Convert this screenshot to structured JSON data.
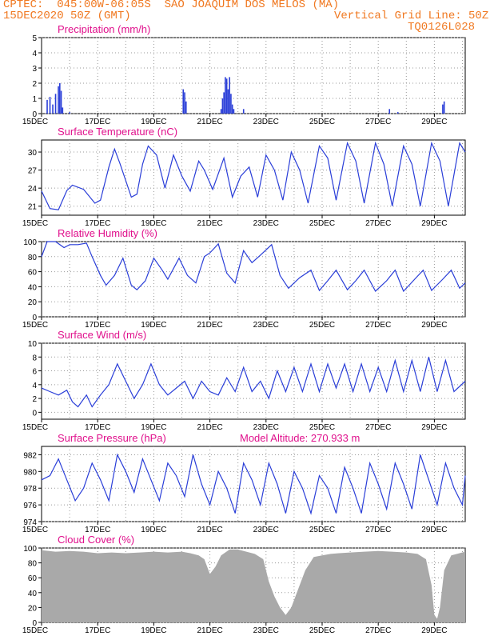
{
  "header": {
    "line1": "CPTEC:  045:00W-06:05S  SAO JOAQUIM DOS MELOS (MA)",
    "line2_left": "15DEC2020 50Z (GMT)",
    "line2_right": "Vertical Grid Line: 50Z",
    "line3_right": "TQ0126L028"
  },
  "colors": {
    "line": "#2a3ed8",
    "title": "#e0108c",
    "header": "#f07820",
    "cloud": "#a9a9a9"
  },
  "chart_data": [
    {
      "type": "bar",
      "title": "Precipitation (mm/h)",
      "ylim": [
        0,
        5
      ],
      "yticks": [
        0,
        1,
        2,
        3,
        4,
        5
      ],
      "xticks": [
        "15DEC",
        "17DEC",
        "19DEC",
        "21DEC",
        "23DEC",
        "25DEC",
        "27DEC",
        "29DEC"
      ],
      "x_unit": "days since 15DEC",
      "points": [
        [
          0.2,
          0.9
        ],
        [
          0.3,
          1.1
        ],
        [
          0.4,
          0.6
        ],
        [
          0.5,
          1.3
        ],
        [
          0.6,
          1.8
        ],
        [
          0.65,
          2.0
        ],
        [
          0.7,
          1.5
        ],
        [
          0.75,
          0.4
        ],
        [
          1.0,
          0.1
        ],
        [
          5.05,
          1.6
        ],
        [
          5.1,
          1.4
        ],
        [
          5.15,
          0.8
        ],
        [
          6.4,
          0.3
        ],
        [
          6.45,
          1.0
        ],
        [
          6.5,
          1.4
        ],
        [
          6.55,
          2.4
        ],
        [
          6.6,
          2.3
        ],
        [
          6.65,
          1.6
        ],
        [
          6.7,
          2.4
        ],
        [
          6.75,
          1.3
        ],
        [
          6.8,
          0.6
        ],
        [
          6.85,
          0.3
        ],
        [
          7.2,
          0.3
        ],
        [
          12.4,
          0.3
        ],
        [
          12.7,
          0.1
        ],
        [
          14.3,
          0.6
        ],
        [
          14.35,
          0.8
        ]
      ]
    },
    {
      "type": "line",
      "title": "Surface Temperature (nC)",
      "ylim": [
        19.5,
        32
      ],
      "yticks": [
        21,
        24,
        27,
        30
      ],
      "xticks": [
        "15DEC",
        "17DEC",
        "19DEC",
        "21DEC",
        "23DEC",
        "25DEC",
        "27DEC",
        "29DEC"
      ],
      "x_unit": "days since 15DEC",
      "points": [
        [
          0,
          23.5
        ],
        [
          0.3,
          20.6
        ],
        [
          0.6,
          20.4
        ],
        [
          0.9,
          23.6
        ],
        [
          1.1,
          24.5
        ],
        [
          1.5,
          23.8
        ],
        [
          1.9,
          21.5
        ],
        [
          2.1,
          22.0
        ],
        [
          2.4,
          27.5
        ],
        [
          2.6,
          30.5
        ],
        [
          2.8,
          28.0
        ],
        [
          3.2,
          22.5
        ],
        [
          3.4,
          23.0
        ],
        [
          3.6,
          28.0
        ],
        [
          3.8,
          31.0
        ],
        [
          4.1,
          29.5
        ],
        [
          4.4,
          24.0
        ],
        [
          4.7,
          29.5
        ],
        [
          5.0,
          26.0
        ],
        [
          5.3,
          23.5
        ],
        [
          5.6,
          28.5
        ],
        [
          5.8,
          27.0
        ],
        [
          6.1,
          23.8
        ],
        [
          6.5,
          29.0
        ],
        [
          6.8,
          22.5
        ],
        [
          7.1,
          26.0
        ],
        [
          7.4,
          27.5
        ],
        [
          7.7,
          22.5
        ],
        [
          8.0,
          29.5
        ],
        [
          8.3,
          27.0
        ],
        [
          8.6,
          22.0
        ],
        [
          8.9,
          30.0
        ],
        [
          9.2,
          27.0
        ],
        [
          9.5,
          21.5
        ],
        [
          9.9,
          31.0
        ],
        [
          10.2,
          29.0
        ],
        [
          10.5,
          22.0
        ],
        [
          10.9,
          31.5
        ],
        [
          11.2,
          28.5
        ],
        [
          11.5,
          21.5
        ],
        [
          11.9,
          31.5
        ],
        [
          12.2,
          28.0
        ],
        [
          12.5,
          21.0
        ],
        [
          12.9,
          31.0
        ],
        [
          13.2,
          28.0
        ],
        [
          13.5,
          21.0
        ],
        [
          13.9,
          31.5
        ],
        [
          14.2,
          28.5
        ],
        [
          14.5,
          21.0
        ],
        [
          14.9,
          31.5
        ],
        [
          15.1,
          30.0
        ]
      ]
    },
    {
      "type": "line",
      "title": "Relative Humidity (%)",
      "ylim": [
        0,
        100
      ],
      "yticks": [
        0,
        20,
        40,
        60,
        80,
        100
      ],
      "xticks": [
        "15DEC",
        "17DEC",
        "19DEC",
        "21DEC",
        "23DEC",
        "25DEC",
        "27DEC",
        "29DEC"
      ],
      "x_unit": "days since 15DEC",
      "points": [
        [
          0,
          80
        ],
        [
          0.2,
          100
        ],
        [
          0.5,
          100
        ],
        [
          0.8,
          92
        ],
        [
          1.0,
          96
        ],
        [
          1.3,
          96
        ],
        [
          1.6,
          98
        ],
        [
          1.8,
          80
        ],
        [
          2.1,
          55
        ],
        [
          2.3,
          42
        ],
        [
          2.6,
          55
        ],
        [
          2.9,
          78
        ],
        [
          3.2,
          42
        ],
        [
          3.4,
          36
        ],
        [
          3.7,
          48
        ],
        [
          4.0,
          78
        ],
        [
          4.3,
          62
        ],
        [
          4.5,
          50
        ],
        [
          4.9,
          78
        ],
        [
          5.2,
          55
        ],
        [
          5.5,
          45
        ],
        [
          5.8,
          80
        ],
        [
          6.0,
          85
        ],
        [
          6.3,
          97
        ],
        [
          6.6,
          58
        ],
        [
          6.9,
          45
        ],
        [
          7.2,
          88
        ],
        [
          7.5,
          72
        ],
        [
          7.8,
          82
        ],
        [
          8.2,
          96
        ],
        [
          8.5,
          55
        ],
        [
          8.8,
          38
        ],
        [
          9.2,
          52
        ],
        [
          9.6,
          62
        ],
        [
          9.9,
          35
        ],
        [
          10.2,
          48
        ],
        [
          10.5,
          62
        ],
        [
          10.9,
          36
        ],
        [
          11.2,
          48
        ],
        [
          11.5,
          62
        ],
        [
          11.9,
          34
        ],
        [
          12.3,
          48
        ],
        [
          12.6,
          62
        ],
        [
          12.9,
          34
        ],
        [
          13.3,
          50
        ],
        [
          13.6,
          62
        ],
        [
          13.9,
          35
        ],
        [
          14.3,
          50
        ],
        [
          14.6,
          62
        ],
        [
          14.9,
          38
        ],
        [
          15.1,
          45
        ]
      ]
    },
    {
      "type": "line",
      "title": "Surface Wind (m/s)",
      "ylim": [
        -1,
        10
      ],
      "yticks": [
        0,
        2,
        4,
        6,
        8,
        10
      ],
      "xticks": [
        "15DEC",
        "17DEC",
        "19DEC",
        "21DEC",
        "23DEC",
        "25DEC",
        "27DEC",
        "29DEC"
      ],
      "x_unit": "days since 15DEC",
      "points": [
        [
          0,
          3.5
        ],
        [
          0.3,
          3.0
        ],
        [
          0.6,
          2.5
        ],
        [
          0.9,
          3.2
        ],
        [
          1.1,
          1.5
        ],
        [
          1.3,
          0.8
        ],
        [
          1.6,
          2.5
        ],
        [
          1.8,
          0.8
        ],
        [
          2.1,
          2.5
        ],
        [
          2.4,
          4.0
        ],
        [
          2.7,
          7.0
        ],
        [
          3.0,
          4.5
        ],
        [
          3.3,
          2.0
        ],
        [
          3.6,
          4.0
        ],
        [
          3.9,
          7.0
        ],
        [
          4.2,
          4.0
        ],
        [
          4.5,
          2.5
        ],
        [
          4.8,
          3.5
        ],
        [
          5.1,
          4.5
        ],
        [
          5.4,
          2.0
        ],
        [
          5.7,
          4.5
        ],
        [
          6.0,
          3.0
        ],
        [
          6.3,
          2.5
        ],
        [
          6.6,
          5.0
        ],
        [
          6.9,
          3.0
        ],
        [
          7.2,
          6.5
        ],
        [
          7.5,
          3.0
        ],
        [
          7.8,
          4.5
        ],
        [
          8.1,
          2.0
        ],
        [
          8.4,
          6.0
        ],
        [
          8.7,
          3.0
        ],
        [
          9.0,
          6.5
        ],
        [
          9.3,
          3.0
        ],
        [
          9.6,
          7.0
        ],
        [
          9.9,
          3.0
        ],
        [
          10.2,
          7.0
        ],
        [
          10.5,
          3.5
        ],
        [
          10.8,
          7.0
        ],
        [
          11.1,
          3.0
        ],
        [
          11.4,
          7.0
        ],
        [
          11.7,
          3.0
        ],
        [
          12.0,
          6.5
        ],
        [
          12.3,
          3.0
        ],
        [
          12.6,
          7.5
        ],
        [
          12.9,
          3.0
        ],
        [
          13.2,
          7.5
        ],
        [
          13.5,
          3.0
        ],
        [
          13.8,
          8.0
        ],
        [
          14.1,
          3.0
        ],
        [
          14.4,
          7.5
        ],
        [
          14.7,
          3.0
        ],
        [
          15.1,
          4.5
        ]
      ]
    },
    {
      "type": "line",
      "title": "Surface Pressure (hPa)",
      "annotation": "Model Altitude: 270.933 m",
      "ylim": [
        974,
        983
      ],
      "yticks": [
        974,
        976,
        978,
        980,
        982
      ],
      "xticks": [
        "15DEC",
        "17DEC",
        "19DEC",
        "21DEC",
        "23DEC",
        "25DEC",
        "27DEC",
        "29DEC"
      ],
      "x_unit": "days since 15DEC",
      "points": [
        [
          0,
          979
        ],
        [
          0.3,
          979.5
        ],
        [
          0.6,
          981.5
        ],
        [
          0.9,
          979
        ],
        [
          1.2,
          976.5
        ],
        [
          1.5,
          978
        ],
        [
          1.8,
          981
        ],
        [
          2.1,
          979
        ],
        [
          2.4,
          976.5
        ],
        [
          2.7,
          982
        ],
        [
          3.0,
          980
        ],
        [
          3.3,
          977.5
        ],
        [
          3.6,
          981.5
        ],
        [
          3.9,
          979
        ],
        [
          4.2,
          976.5
        ],
        [
          4.5,
          981
        ],
        [
          4.8,
          979.5
        ],
        [
          5.1,
          977
        ],
        [
          5.4,
          982
        ],
        [
          5.7,
          978.5
        ],
        [
          6.0,
          976
        ],
        [
          6.3,
          980
        ],
        [
          6.6,
          978
        ],
        [
          6.9,
          975
        ],
        [
          7.2,
          981
        ],
        [
          7.5,
          979
        ],
        [
          7.8,
          976
        ],
        [
          8.1,
          981
        ],
        [
          8.4,
          978.5
        ],
        [
          8.7,
          975
        ],
        [
          9.0,
          980
        ],
        [
          9.3,
          978
        ],
        [
          9.6,
          975
        ],
        [
          9.9,
          979.5
        ],
        [
          10.2,
          978
        ],
        [
          10.5,
          975
        ],
        [
          10.8,
          980.5
        ],
        [
          11.1,
          978
        ],
        [
          11.4,
          975
        ],
        [
          11.7,
          981
        ],
        [
          12.0,
          978.5
        ],
        [
          12.3,
          975.5
        ],
        [
          12.6,
          981
        ],
        [
          12.9,
          978.5
        ],
        [
          13.2,
          975.5
        ],
        [
          13.5,
          982
        ],
        [
          13.8,
          979
        ],
        [
          14.1,
          976
        ],
        [
          14.4,
          981
        ],
        [
          14.7,
          978
        ],
        [
          15.0,
          976
        ],
        [
          15.1,
          979.5
        ]
      ]
    },
    {
      "type": "area",
      "title": "Cloud Cover (%)",
      "ylim": [
        0,
        100
      ],
      "yticks": [
        0,
        20,
        40,
        60,
        80,
        100
      ],
      "xticks": [
        "15DEC",
        "17DEC",
        "19DEC",
        "21DEC",
        "23DEC",
        "25DEC",
        "27DEC",
        "29DEC"
      ],
      "x_unit": "days since 15DEC",
      "points": [
        [
          0,
          97
        ],
        [
          0.5,
          95
        ],
        [
          1.0,
          96
        ],
        [
          1.5,
          95
        ],
        [
          2.0,
          93
        ],
        [
          2.5,
          94
        ],
        [
          3.0,
          93
        ],
        [
          3.5,
          94
        ],
        [
          4.0,
          95
        ],
        [
          4.5,
          94
        ],
        [
          5.0,
          95
        ],
        [
          5.3,
          93
        ],
        [
          5.6,
          90
        ],
        [
          5.8,
          85
        ],
        [
          6.0,
          65
        ],
        [
          6.2,
          75
        ],
        [
          6.4,
          90
        ],
        [
          6.7,
          98
        ],
        [
          7.0,
          98
        ],
        [
          7.3,
          95
        ],
        [
          7.6,
          92
        ],
        [
          7.9,
          85
        ],
        [
          8.1,
          55
        ],
        [
          8.3,
          35
        ],
        [
          8.5,
          20
        ],
        [
          8.7,
          10
        ],
        [
          8.9,
          20
        ],
        [
          9.1,
          40
        ],
        [
          9.4,
          70
        ],
        [
          9.7,
          88
        ],
        [
          10.0,
          90
        ],
        [
          10.3,
          92
        ],
        [
          10.6,
          93
        ],
        [
          11.0,
          94
        ],
        [
          11.5,
          95
        ],
        [
          12.0,
          96
        ],
        [
          12.5,
          95
        ],
        [
          13.0,
          94
        ],
        [
          13.4,
          92
        ],
        [
          13.7,
          85
        ],
        [
          13.9,
          50
        ],
        [
          14.0,
          10
        ],
        [
          14.1,
          5
        ],
        [
          14.2,
          20
        ],
        [
          14.35,
          70
        ],
        [
          14.6,
          90
        ],
        [
          15.1,
          95
        ]
      ]
    }
  ]
}
